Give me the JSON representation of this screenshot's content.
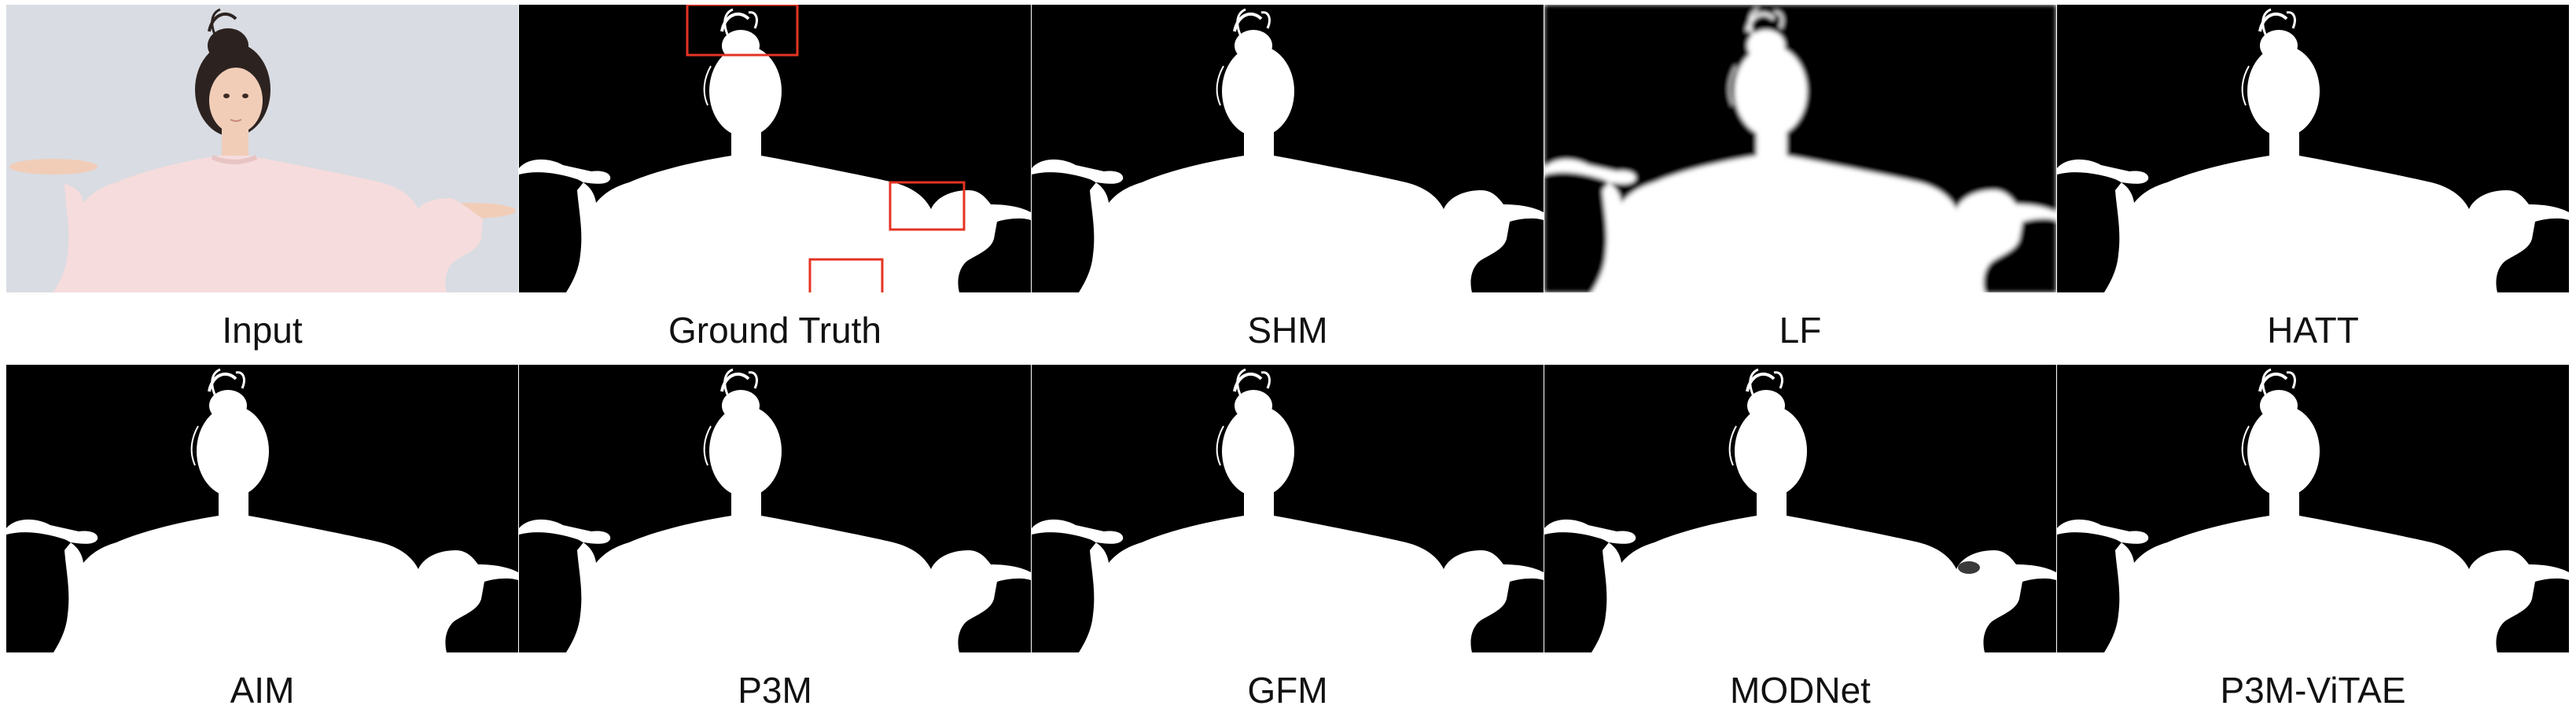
{
  "figure": {
    "panels": [
      {
        "label": "Input",
        "kind": "photo"
      },
      {
        "label": "Ground Truth",
        "kind": "matte",
        "highlights": 3
      },
      {
        "label": "SHM",
        "kind": "matte"
      },
      {
        "label": "LF",
        "kind": "matte",
        "blurry": true
      },
      {
        "label": "HATT",
        "kind": "matte"
      },
      {
        "label": "AIM",
        "kind": "matte"
      },
      {
        "label": "P3M",
        "kind": "matte"
      },
      {
        "label": "GFM",
        "kind": "matte"
      },
      {
        "label": "MODNet",
        "kind": "matte"
      },
      {
        "label": "P3M-ViTAE",
        "kind": "matte"
      }
    ],
    "colors": {
      "matte_background": "#000000",
      "matte_foreground": "#ffffff",
      "photo_background": "#d9dce2",
      "highlight_box": "#e53323",
      "sweater": "#f6dcdc",
      "skin": "#f1cdb8",
      "hair": "#2c2320"
    }
  }
}
